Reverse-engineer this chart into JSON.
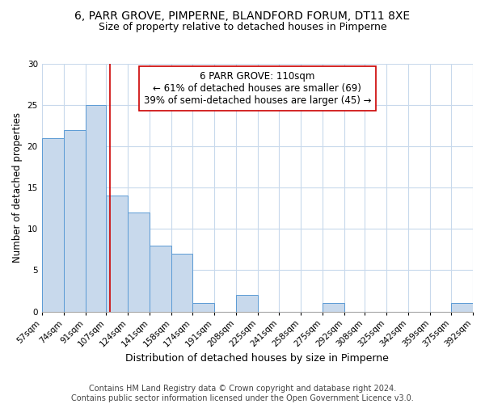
{
  "title": "6, PARR GROVE, PIMPERNE, BLANDFORD FORUM, DT11 8XE",
  "subtitle": "Size of property relative to detached houses in Pimperne",
  "xlabel": "Distribution of detached houses by size in Pimperne",
  "ylabel": "Number of detached properties",
  "bar_edges": [
    57,
    74,
    91,
    107,
    124,
    141,
    158,
    174,
    191,
    208,
    225,
    241,
    258,
    275,
    292,
    308,
    325,
    342,
    359,
    375,
    392
  ],
  "bar_heights": [
    21,
    22,
    25,
    14,
    12,
    8,
    7,
    1,
    0,
    2,
    0,
    0,
    0,
    1,
    0,
    0,
    0,
    0,
    0,
    1
  ],
  "bar_color": "#c8d9ec",
  "bar_edgecolor": "#5b9bd5",
  "reference_line_x": 110,
  "reference_line_color": "#cc0000",
  "annotation_line1": "6 PARR GROVE: 110sqm",
  "annotation_line2": "← 61% of detached houses are smaller (69)",
  "annotation_line3": "39% of semi-detached houses are larger (45) →",
  "annotation_box_edgecolor": "#cc0000",
  "annotation_fontsize": 8.5,
  "ylim": [
    0,
    30
  ],
  "tick_labels": [
    "57sqm",
    "74sqm",
    "91sqm",
    "107sqm",
    "124sqm",
    "141sqm",
    "158sqm",
    "174sqm",
    "191sqm",
    "208sqm",
    "225sqm",
    "241sqm",
    "258sqm",
    "275sqm",
    "292sqm",
    "308sqm",
    "325sqm",
    "342sqm",
    "359sqm",
    "375sqm",
    "392sqm"
  ],
  "footer_text": "Contains HM Land Registry data © Crown copyright and database right 2024.\nContains public sector information licensed under the Open Government Licence v3.0.",
  "title_fontsize": 10,
  "subtitle_fontsize": 9,
  "xlabel_fontsize": 9,
  "ylabel_fontsize": 8.5,
  "tick_fontsize": 7.5,
  "footer_fontsize": 7,
  "background_color": "#ffffff",
  "grid_color": "#c8d9ec"
}
